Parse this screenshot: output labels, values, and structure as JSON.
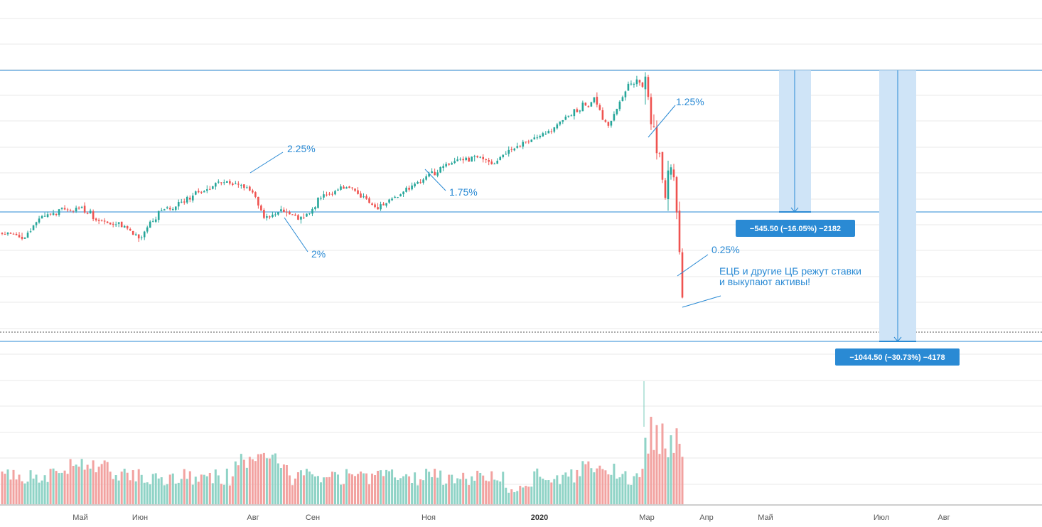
{
  "colors": {
    "up": "#26a69a",
    "down": "#ef5350",
    "up_volume": "#8fd3c6",
    "down_volume": "#f2a2a0",
    "drawing": "#2a8ad4",
    "measure_fill": "#cfe4f7",
    "grid": "#e9e9e9"
  },
  "chart_data": {
    "type": "candlestick",
    "title": "",
    "x_axis": {
      "tick_labels": [
        {
          "label": "Май",
          "bold": false
        },
        {
          "label": "Июн",
          "bold": false
        },
        {
          "label": "Авг",
          "bold": false
        },
        {
          "label": "Сен",
          "bold": false
        },
        {
          "label": "Ноя",
          "bold": false
        },
        {
          "label": "2020",
          "bold": true
        },
        {
          "label": "Мар",
          "bold": false
        },
        {
          "label": "Апр",
          "bold": false
        },
        {
          "label": "Май",
          "bold": false
        },
        {
          "label": "Июл",
          "bold": false
        },
        {
          "label": "Авг",
          "bold": false
        }
      ]
    },
    "y_axis": {
      "labels_visible": false,
      "grid": true
    },
    "price_path": [
      {
        "t": 0,
        "close": 0.54
      },
      {
        "t": 0.03,
        "close": 0.52
      },
      {
        "t": 0.06,
        "close": 0.61
      },
      {
        "t": 0.09,
        "close": 0.63
      },
      {
        "t": 0.12,
        "close": 0.64
      },
      {
        "t": 0.145,
        "close": 0.58
      },
      {
        "t": 0.17,
        "close": 0.58
      },
      {
        "t": 0.2,
        "close": 0.52
      },
      {
        "t": 0.23,
        "close": 0.62
      },
      {
        "t": 0.26,
        "close": 0.66
      },
      {
        "t": 0.3,
        "close": 0.72
      },
      {
        "t": 0.33,
        "close": 0.75
      },
      {
        "t": 0.37,
        "close": 0.71
      },
      {
        "t": 0.385,
        "close": 0.6
      },
      {
        "t": 0.41,
        "close": 0.63
      },
      {
        "t": 0.44,
        "close": 0.6
      },
      {
        "t": 0.47,
        "close": 0.69
      },
      {
        "t": 0.51,
        "close": 0.73
      },
      {
        "t": 0.55,
        "close": 0.64
      },
      {
        "t": 0.58,
        "close": 0.69
      },
      {
        "t": 0.62,
        "close": 0.76
      },
      {
        "t": 0.66,
        "close": 0.83
      },
      {
        "t": 0.7,
        "close": 0.85
      },
      {
        "t": 0.72,
        "close": 0.82
      },
      {
        "t": 0.75,
        "close": 0.88
      },
      {
        "t": 0.8,
        "close": 0.95
      },
      {
        "t": 0.84,
        "close": 1.03
      },
      {
        "t": 0.87,
        "close": 1.08
      },
      {
        "t": 0.89,
        "close": 0.97
      },
      {
        "t": 0.92,
        "close": 1.14
      },
      {
        "t": 0.935,
        "close": 1.16
      },
      {
        "t": 0.948,
        "close": 1.13
      },
      {
        "t": 0.958,
        "close": 0.96
      },
      {
        "t": 0.968,
        "close": 0.84
      },
      {
        "t": 0.975,
        "close": 0.66
      },
      {
        "t": 0.982,
        "close": 0.88
      },
      {
        "t": 0.988,
        "close": 0.74
      },
      {
        "t": 0.993,
        "close": 0.57
      },
      {
        "t": 1.0,
        "close": 0.24
      }
    ],
    "price_annotations": [
      {
        "label": "2.25%"
      },
      {
        "label": "1.75%"
      },
      {
        "label": "2%"
      },
      {
        "label": "1.25%"
      },
      {
        "label": "0.25%"
      }
    ],
    "note": {
      "line1": "ЕЦБ и другие ЦБ режут ставки",
      "line2": "и выкупают активы!"
    },
    "measurements": [
      {
        "label": "−545.50 (−16.05%) −2182",
        "change": -545.5,
        "percent": -16.05,
        "ticks": -2182
      },
      {
        "label": "−1044.50 (−30.73%) −4178",
        "change": -1044.5,
        "percent": -30.73,
        "ticks": -4178
      }
    ],
    "volume": {
      "visible": true,
      "scale_labels": false
    }
  }
}
